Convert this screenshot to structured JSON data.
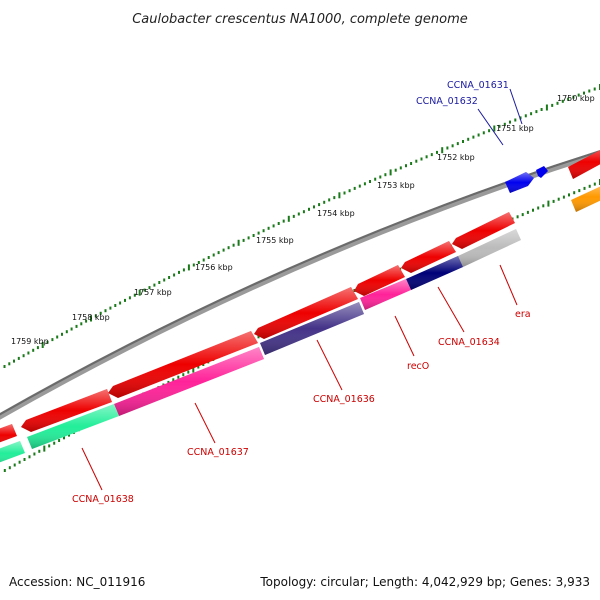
{
  "title": "Caulobacter crescentus NA1000, complete genome",
  "footer": {
    "accession": "Accession: NC_011916",
    "summary": "Topology: circular; Length: 4,042,929 bp; Genes: 3,933"
  },
  "ruler": {
    "ticks": [
      {
        "label": "1750 kbp"
      },
      {
        "label": "1751 kbp"
      },
      {
        "label": "1752 kbp"
      },
      {
        "label": "1753 kbp"
      },
      {
        "label": "1754 kbp"
      },
      {
        "label": "1755 kbp"
      },
      {
        "label": "1756 kbp"
      },
      {
        "label": "1757 kbp"
      },
      {
        "label": "1758 kbp"
      },
      {
        "label": "1759 kbp"
      }
    ]
  },
  "gene_labels": [
    {
      "label": "CCNA_01631",
      "color": "#1a1aa0"
    },
    {
      "label": "CCNA_01632",
      "color": "#1a1aa0"
    },
    {
      "label": "era",
      "color": "#cc0000"
    },
    {
      "label": "CCNA_01634",
      "color": "#cc0000"
    },
    {
      "label": "recO",
      "color": "#cc0000"
    },
    {
      "label": "CCNA_01636",
      "color": "#cc0000"
    },
    {
      "label": "CCNA_01637",
      "color": "#cc0000"
    },
    {
      "label": "CCNA_01638",
      "color": "#cc0000"
    }
  ],
  "colors": {
    "backbone": "#7a7a7a",
    "cds": "#ee0000",
    "ruler_ticks": "#1a7a1a",
    "gene_blue": "#0000ee",
    "gene_orange": "#ff9900",
    "gene_navy": "#000077",
    "gene_grey": "#bbbbbb",
    "gene_pink": "#ff2299",
    "gene_slate": "#443388",
    "gene_teal": "#22ee99"
  }
}
